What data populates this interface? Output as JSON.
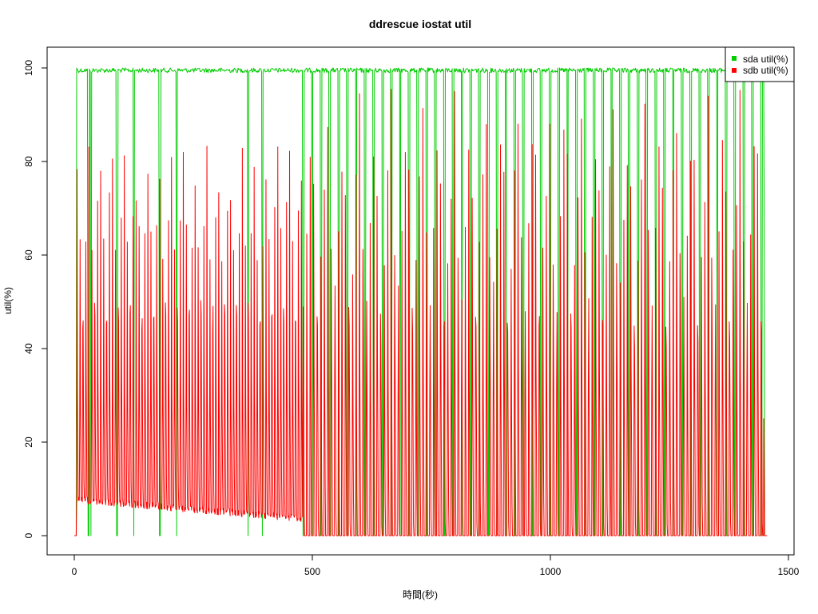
{
  "chart_data": {
    "type": "line",
    "title": "ddrescue iostat util",
    "xlabel": "時間(秒)",
    "ylabel": "util(%)",
    "xlim": [
      0,
      1500
    ],
    "ylim": [
      0,
      100
    ],
    "x_ticks": [
      0,
      500,
      1000,
      1500
    ],
    "y_ticks": [
      0,
      20,
      40,
      60,
      80,
      100
    ],
    "legend_position": "top-right",
    "series": [
      {
        "name": "sda util(%)",
        "color": "#00cc00",
        "x": [
          0,
          4,
          5,
          30,
          31,
          35,
          36,
          60,
          61,
          90,
          91,
          125,
          126,
          180,
          181,
          215,
          216,
          365,
          366,
          395,
          396,
          480,
          481,
          1448,
          1449,
          1450,
          1455
        ],
        "y": [
          0,
          0,
          100,
          100,
          0,
          0,
          100,
          100,
          0,
          100,
          0,
          0,
          100,
          100,
          0,
          100,
          0,
          0,
          100,
          100,
          0,
          100,
          100,
          100,
          70,
          0,
          0
        ],
        "pattern": {
          "base": 100,
          "noise": 1,
          "dips_to_zero_start": 480,
          "dips_to_zero_end": 1448,
          "dip_period": 18.5
        }
      },
      {
        "name": "sdb util(%)",
        "color": "#ff0000",
        "x": [
          0,
          4,
          5,
          10,
          20,
          40,
          60,
          100,
          140,
          180,
          220,
          260,
          300,
          340,
          380,
          420,
          460,
          480,
          500,
          600,
          700,
          800,
          900,
          1000,
          1100,
          1200,
          1300,
          1400,
          1448,
          1450,
          1455
        ],
        "y": [
          0,
          0,
          45,
          85,
          30,
          85,
          5,
          82,
          7,
          85,
          6,
          80,
          5,
          82,
          4,
          88,
          3,
          0,
          93,
          0,
          93,
          0,
          92,
          0,
          93,
          0,
          94,
          0,
          25,
          0,
          0
        ],
        "pattern": {
          "period_early": 6.2,
          "period_late": 7.4,
          "early_end": 480,
          "peak_early_range": [
            75,
            90
          ],
          "trough_early": [
            7,
            3
          ],
          "peak_late_range": [
            85,
            97
          ],
          "mid_late_range": [
            40,
            48
          ],
          "trough_late": 0
        }
      }
    ]
  }
}
